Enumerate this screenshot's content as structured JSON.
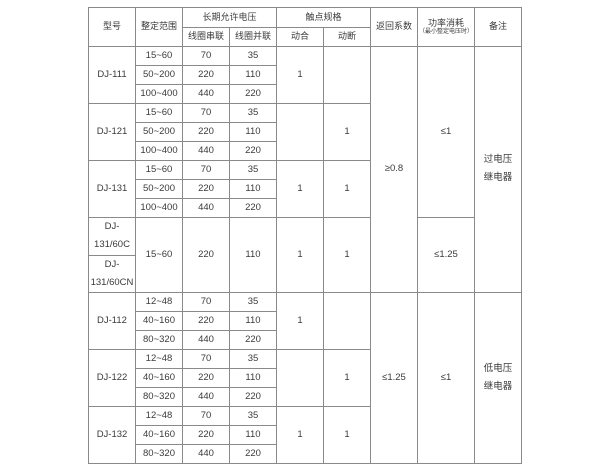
{
  "colors": {
    "border": "#8a8a8a",
    "text": "#3a3a3a",
    "background": "#ffffff"
  },
  "table": {
    "header": [
      {
        "cells": [
          {
            "t": "型号",
            "rs": 2,
            "name": "header-model"
          },
          {
            "t": "整定范围",
            "rs": 2,
            "name": "header-setting-range"
          },
          {
            "t": "长期允许电压",
            "cs": 2,
            "name": "header-long-term-allowed-voltage"
          },
          {
            "t": "触点规格",
            "cs": 2,
            "name": "header-contact-spec"
          },
          {
            "t": "返回系数",
            "rs": 2,
            "name": "header-return-coefficient"
          },
          {
            "t": "功率消耗",
            "sub": "（最小整定电压时）",
            "rs": 2,
            "name": "header-power-consumption"
          },
          {
            "t": "备注",
            "rs": 2,
            "name": "header-remark"
          }
        ]
      },
      {
        "cells": [
          {
            "t": "线圈串联",
            "name": "header-coil-series"
          },
          {
            "t": "线圈并联",
            "name": "header-coil-parallel"
          },
          {
            "t": "动合",
            "name": "header-normally-open"
          },
          {
            "t": "动断",
            "name": "header-normally-closed"
          }
        ]
      }
    ],
    "body": [
      {
        "cells": [
          {
            "t": "DJ-111",
            "rs": 3,
            "name": "cell-model"
          },
          {
            "t": "15~60"
          },
          {
            "t": "70"
          },
          {
            "t": "35"
          },
          {
            "t": "1",
            "rs": 3
          },
          {
            "t": "",
            "rs": 3
          },
          {
            "t": "≥0.8",
            "rs": 11,
            "name": "cell-return-coefficient"
          },
          {
            "t": "≤1",
            "rs": 9,
            "name": "cell-power-consumption"
          },
          {
            "t": "过电压\n继电器",
            "rs": 11,
            "name": "remark-overvoltage-relay"
          }
        ]
      },
      {
        "cells": [
          {
            "t": "50~200"
          },
          {
            "t": "220"
          },
          {
            "t": "110"
          }
        ]
      },
      {
        "cells": [
          {
            "t": "100~400"
          },
          {
            "t": "440"
          },
          {
            "t": "220"
          }
        ]
      },
      {
        "cells": [
          {
            "t": "DJ-121",
            "rs": 3,
            "name": "cell-model"
          },
          {
            "t": "15~60"
          },
          {
            "t": "70"
          },
          {
            "t": "35"
          },
          {
            "t": "",
            "rs": 3
          },
          {
            "t": "1",
            "rs": 3
          }
        ]
      },
      {
        "cells": [
          {
            "t": "50~200"
          },
          {
            "t": "220"
          },
          {
            "t": "110"
          }
        ]
      },
      {
        "cells": [
          {
            "t": "100~400"
          },
          {
            "t": "440"
          },
          {
            "t": "220"
          }
        ]
      },
      {
        "cells": [
          {
            "t": "DJ-131",
            "rs": 3,
            "name": "cell-model"
          },
          {
            "t": "15~60"
          },
          {
            "t": "70"
          },
          {
            "t": "35"
          },
          {
            "t": "1",
            "rs": 3
          },
          {
            "t": "1",
            "rs": 3
          }
        ]
      },
      {
        "cells": [
          {
            "t": "50~200"
          },
          {
            "t": "220"
          },
          {
            "t": "110"
          }
        ]
      },
      {
        "cells": [
          {
            "t": "100~400"
          },
          {
            "t": "440"
          },
          {
            "t": "220"
          }
        ]
      },
      {
        "cells": [
          {
            "t": "DJ-131/60C",
            "name": "cell-model"
          },
          {
            "t": "15~60",
            "rs": 2
          },
          {
            "t": "220",
            "rs": 2
          },
          {
            "t": "110",
            "rs": 2
          },
          {
            "t": "1",
            "rs": 2
          },
          {
            "t": "1",
            "rs": 2
          },
          {
            "t": "≤1.25",
            "rs": 2,
            "name": "cell-power-consumption"
          }
        ]
      },
      {
        "cells": [
          {
            "t": "DJ-131/60CN",
            "name": "cell-model"
          }
        ]
      },
      {
        "cells": [
          {
            "t": "DJ-112",
            "rs": 3,
            "name": "cell-model"
          },
          {
            "t": "12~48"
          },
          {
            "t": "70"
          },
          {
            "t": "35"
          },
          {
            "t": "1",
            "rs": 3
          },
          {
            "t": "",
            "rs": 3
          },
          {
            "t": "≤1.25",
            "rs": 9,
            "name": "cell-return-coefficient"
          },
          {
            "t": "≤1",
            "rs": 9,
            "name": "cell-power-consumption"
          },
          {
            "t": "低电压\n继电器",
            "rs": 9,
            "name": "remark-undervoltage-relay"
          }
        ]
      },
      {
        "cells": [
          {
            "t": "40~160"
          },
          {
            "t": "220"
          },
          {
            "t": "110"
          }
        ]
      },
      {
        "cells": [
          {
            "t": "80~320"
          },
          {
            "t": "440"
          },
          {
            "t": "220"
          }
        ]
      },
      {
        "cells": [
          {
            "t": "DJ-122",
            "rs": 3,
            "name": "cell-model"
          },
          {
            "t": "12~48"
          },
          {
            "t": "70"
          },
          {
            "t": "35"
          },
          {
            "t": "",
            "rs": 3
          },
          {
            "t": "1",
            "rs": 3
          }
        ]
      },
      {
        "cells": [
          {
            "t": "40~160"
          },
          {
            "t": "220"
          },
          {
            "t": "110"
          }
        ]
      },
      {
        "cells": [
          {
            "t": "80~320"
          },
          {
            "t": "440"
          },
          {
            "t": "220"
          }
        ]
      },
      {
        "cells": [
          {
            "t": "DJ-132",
            "rs": 3,
            "name": "cell-model"
          },
          {
            "t": "12~48"
          },
          {
            "t": "70"
          },
          {
            "t": "35"
          },
          {
            "t": "1",
            "rs": 3
          },
          {
            "t": "1",
            "rs": 3
          }
        ]
      },
      {
        "cells": [
          {
            "t": "40~160"
          },
          {
            "t": "220"
          },
          {
            "t": "110"
          }
        ]
      },
      {
        "cells": [
          {
            "t": "80~320"
          },
          {
            "t": "440"
          },
          {
            "t": "220"
          }
        ]
      }
    ]
  }
}
